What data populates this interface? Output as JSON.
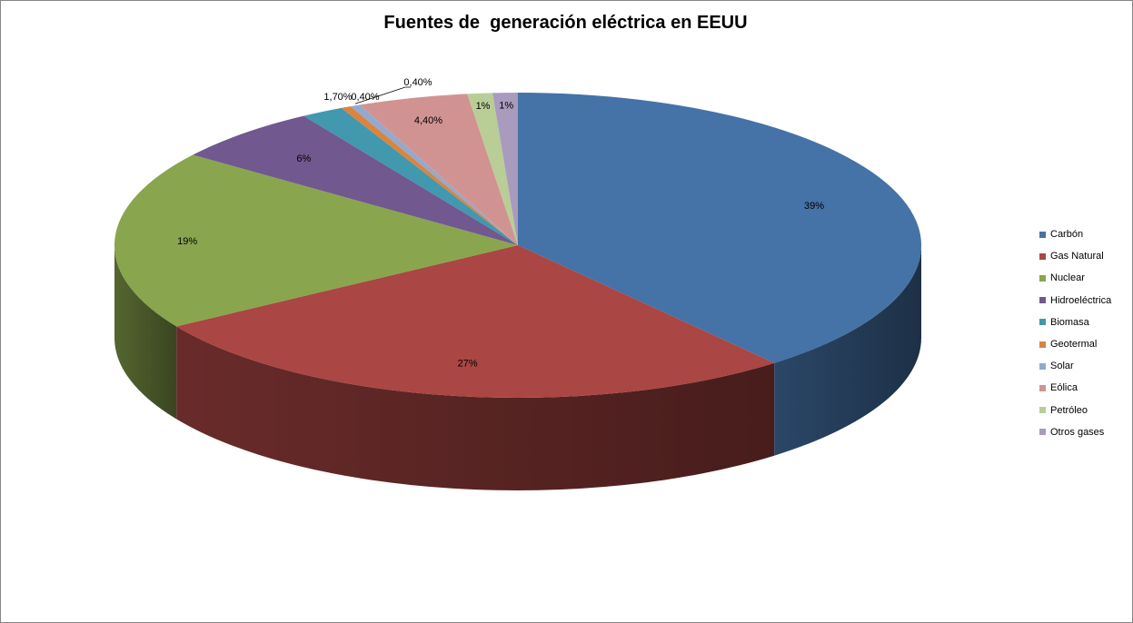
{
  "chart_data": {
    "type": "pie",
    "title": "Fuentes de  generación eléctrica en EEUU",
    "slices": [
      {
        "name": "Carbón",
        "value": 39,
        "label": "39%",
        "color": "#4572A7"
      },
      {
        "name": "Gas Natural",
        "value": 27,
        "label": "27%",
        "color": "#AA4643"
      },
      {
        "name": "Nuclear",
        "value": 19,
        "label": "19%",
        "color": "#89A54E"
      },
      {
        "name": "Hidroeléctrica",
        "value": 6,
        "label": "6%",
        "color": "#71588F"
      },
      {
        "name": "Biomasa",
        "value": 1.7,
        "label": "1,70%",
        "color": "#4198AF"
      },
      {
        "name": "Geotermal",
        "value": 0.4,
        "label": "0,40%",
        "color": "#DB843D"
      },
      {
        "name": "Solar",
        "value": 0.4,
        "label": "0,40%",
        "color": "#93A9CF"
      },
      {
        "name": "Eólica",
        "value": 4.4,
        "label": "4,40%",
        "color": "#D19392"
      },
      {
        "name": "Petróleo",
        "value": 1,
        "label": "1%",
        "color": "#B9CD96"
      },
      {
        "name": "Otros gases",
        "value": 1,
        "label": "1%",
        "color": "#A99BBD"
      }
    ],
    "legend_position": "right",
    "style": "3d-pie"
  }
}
